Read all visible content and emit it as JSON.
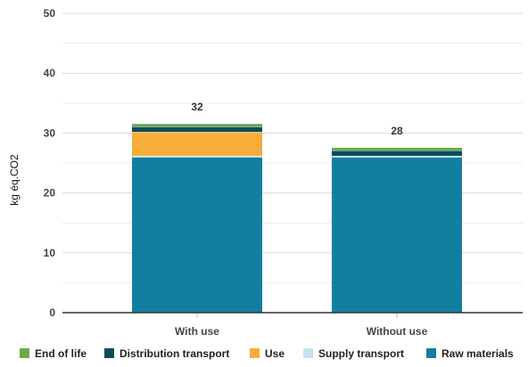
{
  "chart_data": {
    "type": "bar",
    "stacked": true,
    "title": "",
    "xlabel": "",
    "ylabel": "kg éq.CO2",
    "ylim": [
      0,
      50
    ],
    "yticks": [
      0,
      10,
      20,
      30,
      40,
      50
    ],
    "grid": true,
    "legend_position": "bottom",
    "categories": [
      "With use",
      "Without use"
    ],
    "totals": [
      32,
      28
    ],
    "series": [
      {
        "name": "Raw materials",
        "color": "#127fa1",
        "values": [
          26,
          26
        ]
      },
      {
        "name": "Supply transport",
        "color": "#c6e3eb",
        "values": [
          0.2,
          0.2
        ]
      },
      {
        "name": "Use",
        "color": "#f6ad3a",
        "values": [
          4,
          0
        ]
      },
      {
        "name": "Distribution transport",
        "color": "#0b4c5c",
        "values": [
          0.9,
          0.9
        ]
      },
      {
        "name": "End of life",
        "color": "#6aab4a",
        "values": [
          0.5,
          0.5
        ]
      }
    ],
    "legend_order": [
      "End of life",
      "Distribution transport",
      "Use",
      "Supply transport",
      "Raw materials"
    ]
  }
}
